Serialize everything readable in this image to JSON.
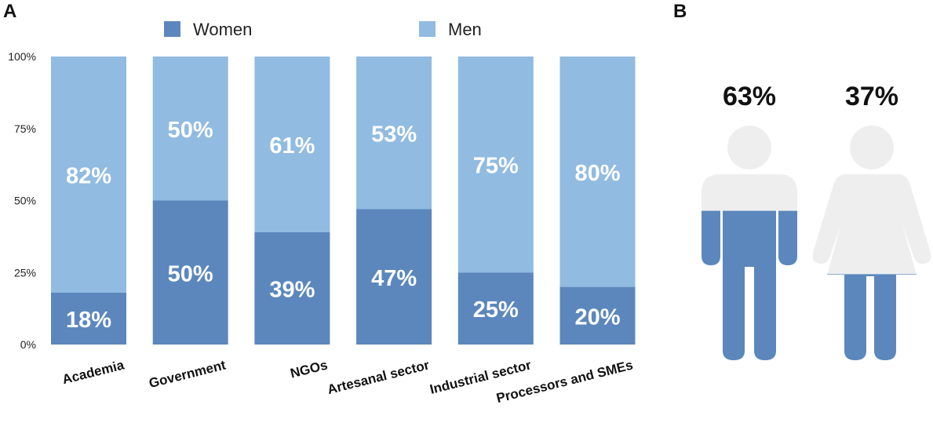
{
  "panels": {
    "a": "A",
    "b": "B"
  },
  "colors": {
    "women": "#5b87bd",
    "men": "#91bbe1",
    "figure_base": "#eeeeef",
    "text": "#111111"
  },
  "chart_data": [
    {
      "type": "bar",
      "stacked": true,
      "title": "",
      "categories": [
        "Academia",
        "Government",
        "NGOs",
        "Artesanal sector",
        "Industrial sector",
        "Processors and SMEs"
      ],
      "series": [
        {
          "name": "Women",
          "values": [
            18,
            50,
            39,
            47,
            25,
            20
          ]
        },
        {
          "name": "Men",
          "values": [
            82,
            50,
            61,
            53,
            75,
            80
          ]
        }
      ],
      "yticks": [
        "0%",
        "25%",
        "50%",
        "75%",
        "100%"
      ],
      "ylim": [
        0,
        100
      ],
      "xlabel": "",
      "ylabel": "",
      "legend": "top"
    },
    {
      "type": "pictogram",
      "figures": [
        {
          "icon": "man-icon",
          "label": "63%",
          "value": 63,
          "fill_fraction": 0.63
        },
        {
          "icon": "woman-icon",
          "label": "37%",
          "value": 37,
          "fill_fraction": 0.37
        }
      ]
    }
  ]
}
